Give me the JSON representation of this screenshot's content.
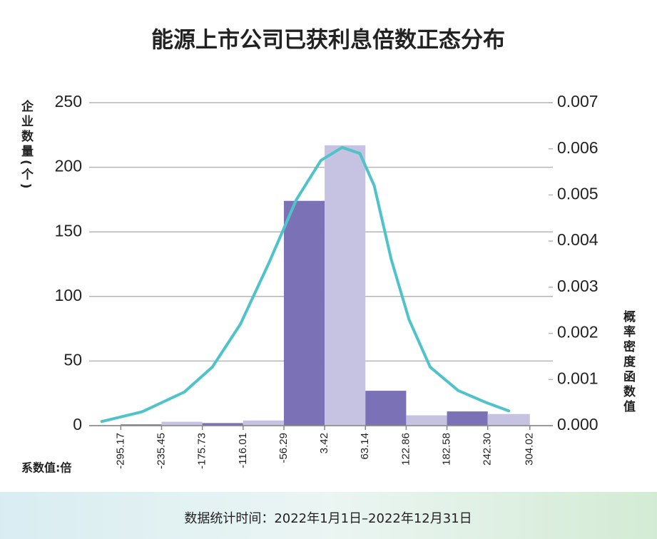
{
  "chart_data": {
    "type": "histogram",
    "title": "能源上市公司已获利息倍数正态分布",
    "y_label": "企业数量(个)",
    "y2_label": "概率密度函数值",
    "x_label": "系数值:倍",
    "footer": "数据统计时间：2022年1月1日–2022年12月31日",
    "bins": [
      -295.17,
      -235.45,
      -175.73,
      -116.01,
      -56.29,
      3.42,
      63.14,
      122.86,
      182.58,
      242.3,
      304.02
    ],
    "counts": [
      1,
      3,
      2,
      4,
      174,
      217,
      27,
      8,
      11,
      9
    ],
    "colors": [
      "#7b71b6",
      "#c6c2e1",
      "#7b71b6",
      "#c6c2e1",
      "#7b71b6",
      "#c6c2e1",
      "#7b71b6",
      "#c6c2e1",
      "#7b71b6",
      "#c6c2e1"
    ],
    "series": [
      {
        "name": "概率密度",
        "color": "#4fc3c9",
        "axis": "y2",
        "x": [
          -323,
          -264,
          -202,
          -161,
          -120,
          -79,
          -38,
          -2,
          29,
          55,
          76,
          101,
          127,
          158,
          199,
          240,
          273
        ],
        "values": [
          9e-05,
          0.0003,
          0.00073,
          0.00127,
          0.0022,
          0.0035,
          0.0049,
          0.00575,
          0.00603,
          0.0059,
          0.0052,
          0.0036,
          0.0023,
          0.00127,
          0.00076,
          0.0005,
          0.00032
        ]
      }
    ],
    "xlim": [
      -341.5,
      337.7
    ],
    "xticks": [
      -295.17,
      -235.45,
      -175.73,
      -116.01,
      -56.29,
      3.42,
      63.14,
      122.86,
      182.58,
      {
        "value": 242.3,
        "label": "242.30"
      },
      304.02
    ],
    "ylim": [
      0,
      250
    ],
    "yticks": [
      0,
      50,
      100,
      150,
      200,
      250
    ],
    "y2lim": [
      0,
      0.007
    ],
    "y2ticks": [
      {
        "value": 0,
        "label": "0.000"
      },
      {
        "value": 0.001,
        "label": "0.001"
      },
      {
        "value": 0.002,
        "label": "0.002"
      },
      {
        "value": 0.003,
        "label": "0.003"
      },
      {
        "value": 0.004,
        "label": "0.004"
      },
      {
        "value": 0.005,
        "label": "0.005"
      },
      {
        "value": 0.006,
        "label": "0.006"
      },
      {
        "value": 0.007,
        "label": "0.007"
      }
    ],
    "grid": true
  }
}
